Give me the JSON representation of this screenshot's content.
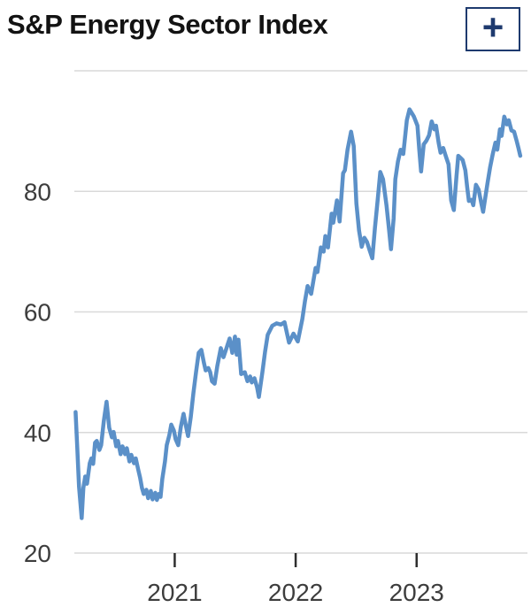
{
  "header": {
    "title": "S&P Energy Sector Index",
    "expand_button_label": "+"
  },
  "colors": {
    "background": "#ffffff",
    "title_text": "#131313",
    "button_accent": "#1e3a6e",
    "line": "#5b90c8",
    "grid": "#d9d9d9",
    "axis_text": "#3d3d3d",
    "tick_mark": "#2e2e2e"
  },
  "chart_data": {
    "type": "line",
    "title": "S&P Energy Sector Index",
    "series_name": "S&P Energy Sector Index",
    "xlabel": "",
    "ylabel": "",
    "grid": true,
    "legend": "none",
    "x_domain": [
      2020.17,
      2023.88
    ],
    "y_domain": [
      20,
      100
    ],
    "y_gridlines": [
      {
        "value": 20,
        "label": "20"
      },
      {
        "value": 40,
        "label": "40"
      },
      {
        "value": 60,
        "label": "60"
      },
      {
        "value": 80,
        "label": "80"
      },
      {
        "value": 100,
        "label": ""
      }
    ],
    "x_ticks": [
      {
        "value": 2021,
        "label": "2021"
      },
      {
        "value": 2022,
        "label": "2022"
      },
      {
        "value": 2023,
        "label": "2023"
      }
    ],
    "points": [
      [
        2020.18,
        43.4
      ],
      [
        2020.194,
        37.5
      ],
      [
        2020.209,
        31.0
      ],
      [
        2020.231,
        25.8
      ],
      [
        2020.245,
        30.8
      ],
      [
        2020.26,
        32.7
      ],
      [
        2020.275,
        31.5
      ],
      [
        2020.297,
        34.9
      ],
      [
        2020.311,
        35.7
      ],
      [
        2020.326,
        34.8
      ],
      [
        2020.341,
        38.3
      ],
      [
        2020.355,
        38.6
      ],
      [
        2020.377,
        37.1
      ],
      [
        2020.392,
        37.9
      ],
      [
        2020.414,
        41.9
      ],
      [
        2020.436,
        45.1
      ],
      [
        2020.458,
        40.8
      ],
      [
        2020.48,
        39.2
      ],
      [
        2020.495,
        40.1
      ],
      [
        2020.516,
        37.7
      ],
      [
        2020.531,
        38.6
      ],
      [
        2020.553,
        36.4
      ],
      [
        2020.568,
        37.7
      ],
      [
        2020.59,
        36.4
      ],
      [
        2020.604,
        37.4
      ],
      [
        2020.626,
        35.2
      ],
      [
        2020.641,
        36.3
      ],
      [
        2020.663,
        34.9
      ],
      [
        2020.678,
        35.7
      ],
      [
        2020.7,
        33.7
      ],
      [
        2020.714,
        32.5
      ],
      [
        2020.729,
        30.8
      ],
      [
        2020.744,
        29.8
      ],
      [
        2020.766,
        30.5
      ],
      [
        2020.78,
        29.1
      ],
      [
        2020.802,
        30.3
      ],
      [
        2020.817,
        28.9
      ],
      [
        2020.839,
        30.0
      ],
      [
        2020.853,
        28.8
      ],
      [
        2020.868,
        29.8
      ],
      [
        2020.883,
        29.3
      ],
      [
        2020.897,
        32.3
      ],
      [
        2020.919,
        35.2
      ],
      [
        2020.934,
        37.9
      ],
      [
        2020.956,
        39.6
      ],
      [
        2020.971,
        41.3
      ],
      [
        2020.993,
        40.3
      ],
      [
        2021.007,
        38.9
      ],
      [
        2021.029,
        37.9
      ],
      [
        2021.051,
        41.0
      ],
      [
        2021.073,
        43.1
      ],
      [
        2021.088,
        41.5
      ],
      [
        2021.11,
        39.4
      ],
      [
        2021.132,
        42.5
      ],
      [
        2021.154,
        46.5
      ],
      [
        2021.176,
        50.0
      ],
      [
        2021.198,
        53.2
      ],
      [
        2021.22,
        53.7
      ],
      [
        2021.242,
        51.5
      ],
      [
        2021.256,
        50.3
      ],
      [
        2021.278,
        50.7
      ],
      [
        2021.293,
        50.0
      ],
      [
        2021.308,
        48.5
      ],
      [
        2021.33,
        48.1
      ],
      [
        2021.352,
        51.0
      ],
      [
        2021.381,
        54.0
      ],
      [
        2021.403,
        52.5
      ],
      [
        2021.425,
        53.8
      ],
      [
        2021.454,
        55.6
      ],
      [
        2021.476,
        53.2
      ],
      [
        2021.498,
        55.9
      ],
      [
        2021.513,
        52.9
      ],
      [
        2021.527,
        55.4
      ],
      [
        2021.549,
        49.7
      ],
      [
        2021.579,
        50.0
      ],
      [
        2021.601,
        48.5
      ],
      [
        2021.623,
        49.3
      ],
      [
        2021.637,
        48.3
      ],
      [
        2021.659,
        49.0
      ],
      [
        2021.681,
        47.5
      ],
      [
        2021.696,
        45.9
      ],
      [
        2021.725,
        50.0
      ],
      [
        2021.747,
        53.4
      ],
      [
        2021.769,
        56.2
      ],
      [
        2021.806,
        57.7
      ],
      [
        2021.842,
        58.1
      ],
      [
        2021.879,
        57.9
      ],
      [
        2021.908,
        58.3
      ],
      [
        2021.945,
        54.9
      ],
      [
        2021.982,
        56.4
      ],
      [
        2022.018,
        55.1
      ],
      [
        2022.055,
        58.8
      ],
      [
        2022.077,
        61.8
      ],
      [
        2022.099,
        64.3
      ],
      [
        2022.128,
        63.0
      ],
      [
        2022.165,
        67.3
      ],
      [
        2022.18,
        66.6
      ],
      [
        2022.209,
        70.7
      ],
      [
        2022.231,
        70.0
      ],
      [
        2022.245,
        72.6
      ],
      [
        2022.267,
        70.7
      ],
      [
        2022.297,
        76.3
      ],
      [
        2022.311,
        74.8
      ],
      [
        2022.341,
        78.5
      ],
      [
        2022.363,
        75.0
      ],
      [
        2022.392,
        83.0
      ],
      [
        2022.407,
        83.5
      ],
      [
        2022.429,
        86.9
      ],
      [
        2022.458,
        89.9
      ],
      [
        2022.48,
        87.5
      ],
      [
        2022.502,
        78.0
      ],
      [
        2022.524,
        73.5
      ],
      [
        2022.546,
        70.8
      ],
      [
        2022.568,
        72.3
      ],
      [
        2022.59,
        71.6
      ],
      [
        2022.612,
        70.2
      ],
      [
        2022.634,
        68.9
      ],
      [
        2022.656,
        74.0
      ],
      [
        2022.678,
        78.5
      ],
      [
        2022.7,
        83.2
      ],
      [
        2022.722,
        82.0
      ],
      [
        2022.751,
        77.7
      ],
      [
        2022.773,
        73.5
      ],
      [
        2022.788,
        70.4
      ],
      [
        2022.81,
        75.5
      ],
      [
        2022.824,
        82.0
      ],
      [
        2022.846,
        85.0
      ],
      [
        2022.868,
        86.9
      ],
      [
        2022.89,
        86.2
      ],
      [
        2022.919,
        91.8
      ],
      [
        2022.941,
        93.6
      ],
      [
        2022.963,
        92.9
      ],
      [
        2022.978,
        92.4
      ],
      [
        2023.007,
        90.9
      ],
      [
        2023.022,
        87.0
      ],
      [
        2023.037,
        83.3
      ],
      [
        2023.059,
        87.8
      ],
      [
        2023.081,
        88.4
      ],
      [
        2023.103,
        89.3
      ],
      [
        2023.125,
        91.6
      ],
      [
        2023.146,
        90.3
      ],
      [
        2023.161,
        90.9
      ],
      [
        2023.183,
        88.0
      ],
      [
        2023.198,
        86.4
      ],
      [
        2023.22,
        87.2
      ],
      [
        2023.242,
        85.8
      ],
      [
        2023.264,
        84.5
      ],
      [
        2023.286,
        78.5
      ],
      [
        2023.308,
        76.9
      ],
      [
        2023.33,
        82.5
      ],
      [
        2023.344,
        85.9
      ],
      [
        2023.366,
        85.5
      ],
      [
        2023.381,
        85.2
      ],
      [
        2023.403,
        83.5
      ],
      [
        2023.418,
        80.7
      ],
      [
        2023.432,
        78.4
      ],
      [
        2023.454,
        78.6
      ],
      [
        2023.469,
        77.7
      ],
      [
        2023.491,
        81.1
      ],
      [
        2023.513,
        80.3
      ],
      [
        2023.535,
        78.0
      ],
      [
        2023.55,
        76.6
      ],
      [
        2023.572,
        79.5
      ],
      [
        2023.586,
        81.3
      ],
      [
        2023.608,
        84.0
      ],
      [
        2023.63,
        86.2
      ],
      [
        2023.652,
        88.1
      ],
      [
        2023.667,
        86.9
      ],
      [
        2023.689,
        90.3
      ],
      [
        2023.703,
        89.2
      ],
      [
        2023.725,
        92.4
      ],
      [
        2023.747,
        91.1
      ],
      [
        2023.762,
        91.8
      ],
      [
        2023.784,
        90.1
      ],
      [
        2023.806,
        89.9
      ],
      [
        2023.828,
        88.3
      ],
      [
        2023.842,
        87.2
      ],
      [
        2023.857,
        85.9
      ]
    ]
  }
}
